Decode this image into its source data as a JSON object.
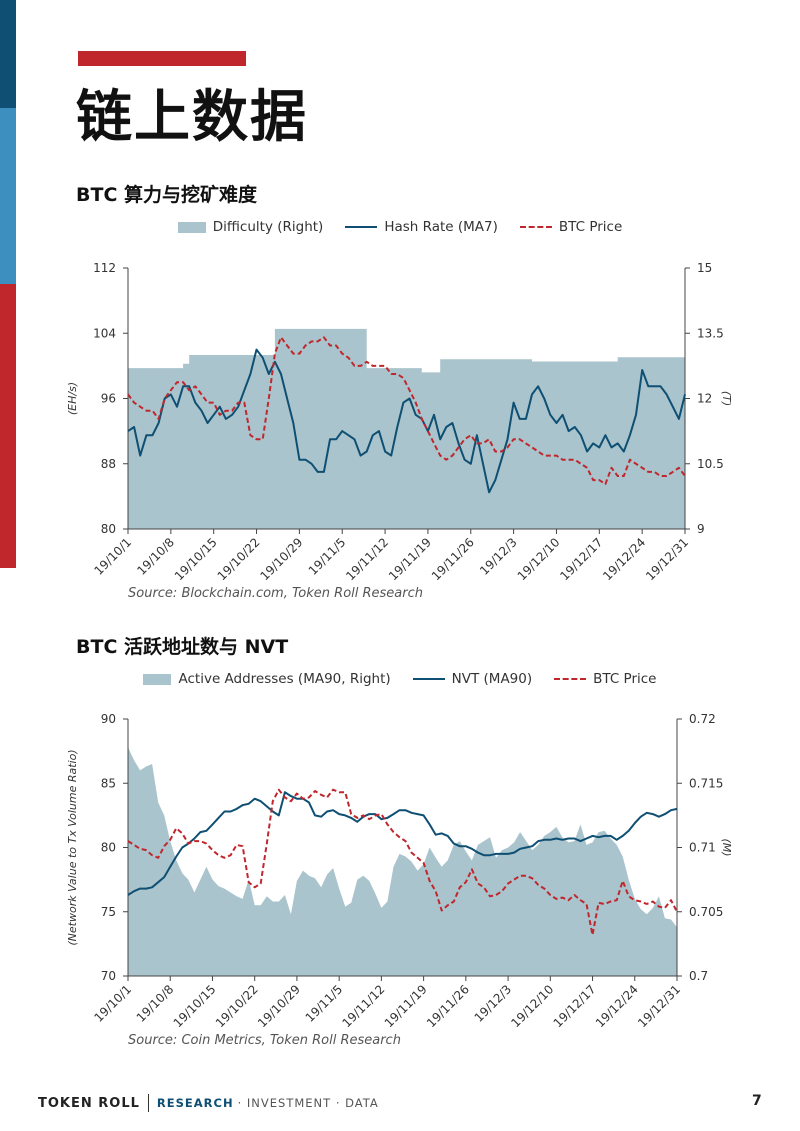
{
  "page": {
    "heading": "链上数据",
    "page_number": "7",
    "footer": {
      "brand": "TOKEN ROLL",
      "research": "RESEARCH",
      "rest": "· INVESTMENT · DATA"
    },
    "colors": {
      "area": "#a9c4cc",
      "line": "#0e4f73",
      "dash": "#c0272d",
      "accent_red": "#c0272d",
      "accent_blue": "#3d8fbf",
      "accent_navy": "#0e4f73"
    }
  },
  "chart_data": [
    {
      "type": "line",
      "title": "BTC 算力与挖矿难度",
      "source": "Source: Blockchain.com, Token Roll Research",
      "legend": [
        "Difficulty (Right)",
        "Hash Rate (MA7)",
        "BTC Price"
      ],
      "ylabel_left": "(EH/s)",
      "ylabel_right": "(T)",
      "ylim_left": [
        80,
        112
      ],
      "ylim_right": [
        9,
        15
      ],
      "yticks_left": [
        "80",
        "88",
        "96",
        "104",
        "112"
      ],
      "yticks_right": [
        "9",
        "10.5",
        "12",
        "13.5",
        "15"
      ],
      "xticks": [
        "19/10/1",
        "19/10/8",
        "19/10/15",
        "19/10/22",
        "19/10/29",
        "19/11/5",
        "19/11/12",
        "19/11/19",
        "19/11/26",
        "19/12/3",
        "19/12/10",
        "19/12/17",
        "19/12/24",
        "19/12/31"
      ],
      "n_days": 92,
      "series": [
        {
          "name": "Difficulty (Right)",
          "kind": "area",
          "axis": "right",
          "steps": [
            [
              0,
              12.7
            ],
            [
              9,
              12.8
            ],
            [
              10,
              13.0
            ],
            [
              24,
              13.6
            ],
            [
              39,
              12.7
            ],
            [
              48,
              12.6
            ],
            [
              51,
              12.9
            ],
            [
              66,
              12.85
            ],
            [
              80,
              12.95
            ],
            [
              91,
              12.95
            ]
          ]
        },
        {
          "name": "Hash Rate (MA7)",
          "kind": "line",
          "axis": "left",
          "values": [
            92,
            92.5,
            89,
            91.5,
            91.5,
            93,
            96,
            96.5,
            95,
            97.5,
            97.5,
            95.5,
            94.5,
            93,
            94,
            95,
            93.5,
            94,
            95,
            97,
            99,
            102,
            101,
            99,
            100.5,
            99,
            96,
            93,
            88.5,
            88.5,
            88,
            87,
            87,
            91,
            91,
            92,
            91.5,
            91,
            89,
            89.5,
            91.5,
            92,
            89.5,
            89,
            92.5,
            95.5,
            96,
            94,
            93.5,
            92,
            94,
            91,
            92.5,
            93,
            90.5,
            88.5,
            88,
            91.5,
            88,
            84.5,
            86,
            88.5,
            91,
            95.5,
            93.5,
            93.5,
            96.5,
            97.5,
            96,
            94,
            93,
            94,
            92,
            92.5,
            91.5,
            89.5,
            90.5,
            90,
            91.5,
            90,
            90.5,
            89.5,
            91.5,
            94,
            99.5,
            97.5,
            97.5,
            97.5,
            96.5,
            95,
            93.5,
            96.5
          ]
        },
        {
          "name": "BTC Price",
          "kind": "dashed",
          "axis": "left",
          "values": [
            96.5,
            95.5,
            95,
            94.5,
            94.5,
            93.5,
            96,
            97,
            98,
            98,
            97,
            97.5,
            96.5,
            95.5,
            95.5,
            94,
            94.5,
            94.5,
            95.5,
            95.5,
            91.5,
            91,
            91,
            96,
            101.5,
            103.5,
            102.5,
            101.5,
            101.5,
            102.5,
            103,
            103,
            103.5,
            102.5,
            102.5,
            101.5,
            101,
            100,
            100,
            100.5,
            100,
            100,
            100,
            99,
            99,
            98.5,
            97,
            95.5,
            93.5,
            92,
            90.5,
            89,
            88.5,
            89,
            90,
            91,
            91.5,
            90.5,
            90.5,
            91,
            89.5,
            89.5,
            90,
            91,
            91,
            90.5,
            90,
            89.5,
            89,
            89,
            89,
            88.5,
            88.5,
            88.5,
            88,
            87.5,
            86,
            86,
            85.5,
            87.5,
            86.5,
            86.5,
            88.5,
            88,
            87.5,
            87,
            87,
            86.5,
            86.5,
            87,
            87.5,
            86.5
          ]
        }
      ]
    },
    {
      "type": "line",
      "title": "BTC 活跃地址数与 NVT",
      "source": "Source: Coin Metrics, Token Roll Research",
      "legend": [
        "Active Addresses (MA90, Right)",
        "NVT (MA90)",
        "BTC Price"
      ],
      "ylabel_left": "(Network Value to Tx Volume Ratio)",
      "ylabel_right": "(M)",
      "ylim_left": [
        70,
        90
      ],
      "ylim_right": [
        0.7,
        0.72
      ],
      "yticks_left": [
        "70",
        "75",
        "80",
        "85",
        "90"
      ],
      "yticks_right": [
        "0.7",
        "0.705",
        "0.71",
        "0.715",
        "0.72"
      ],
      "xticks": [
        "19/10/1",
        "19/10/8",
        "19/10/15",
        "19/10/22",
        "19/10/29",
        "19/11/5",
        "19/11/12",
        "19/11/19",
        "19/11/26",
        "19/12/3",
        "19/12/10",
        "19/12/17",
        "19/12/24",
        "19/12/31"
      ],
      "n_days": 92,
      "series": [
        {
          "name": "Active Addresses (MA90, Right)",
          "kind": "area",
          "axis": "right",
          "values": [
            0.7178,
            0.7168,
            0.716,
            0.7163,
            0.7165,
            0.7135,
            0.7125,
            0.7105,
            0.709,
            0.708,
            0.7075,
            0.7065,
            0.7075,
            0.7085,
            0.7075,
            0.707,
            0.7068,
            0.7065,
            0.7062,
            0.706,
            0.7075,
            0.7055,
            0.7055,
            0.7062,
            0.7058,
            0.7058,
            0.7063,
            0.7048,
            0.7074,
            0.7082,
            0.7078,
            0.7076,
            0.7069,
            0.7079,
            0.7084,
            0.7068,
            0.7054,
            0.7057,
            0.7075,
            0.7078,
            0.7074,
            0.7064,
            0.7053,
            0.7058,
            0.7085,
            0.7095,
            0.7093,
            0.7089,
            0.7082,
            0.7087,
            0.71,
            0.7092,
            0.7085,
            0.709,
            0.7102,
            0.7105,
            0.7097,
            0.709,
            0.7102,
            0.7105,
            0.7108,
            0.7092,
            0.7098,
            0.71,
            0.7104,
            0.7112,
            0.7105,
            0.7098,
            0.7102,
            0.7109,
            0.7112,
            0.7116,
            0.7108,
            0.7104,
            0.7105,
            0.7118,
            0.7102,
            0.7104,
            0.7112,
            0.7113,
            0.7107,
            0.7102,
            0.7093,
            0.7075,
            0.706,
            0.7052,
            0.7048,
            0.7053,
            0.7062,
            0.7045,
            0.7044,
            0.7038
          ]
        },
        {
          "name": "NVT (MA90)",
          "kind": "line",
          "axis": "left",
          "values": [
            76.3,
            76.6,
            76.8,
            76.8,
            76.9,
            77.3,
            77.7,
            78.5,
            79.3,
            80,
            80.3,
            80.7,
            81.2,
            81.3,
            81.8,
            82.3,
            82.8,
            82.8,
            83,
            83.3,
            83.4,
            83.8,
            83.6,
            83.2,
            82.8,
            82.5,
            84.3,
            84,
            83.8,
            83.8,
            83.5,
            82.5,
            82.4,
            82.8,
            82.9,
            82.6,
            82.5,
            82.3,
            82,
            82.4,
            82.6,
            82.6,
            82.2,
            82.3,
            82.6,
            82.9,
            82.9,
            82.7,
            82.6,
            82.5,
            81.8,
            81,
            81.1,
            80.9,
            80.3,
            80.1,
            80.1,
            79.9,
            79.6,
            79.4,
            79.4,
            79.5,
            79.5,
            79.5,
            79.6,
            79.9,
            80,
            80.1,
            80.5,
            80.6,
            80.6,
            80.7,
            80.6,
            80.7,
            80.7,
            80.5,
            80.7,
            80.9,
            80.8,
            80.9,
            80.9,
            80.6,
            80.9,
            81.3,
            81.9,
            82.4,
            82.7,
            82.6,
            82.4,
            82.6,
            82.9,
            83
          ]
        },
        {
          "name": "BTC Price",
          "kind": "dashed",
          "axis": "left",
          "values": [
            80.5,
            80.2,
            79.9,
            79.8,
            79.4,
            79.2,
            80.1,
            80.6,
            81.5,
            81.1,
            80.3,
            80.5,
            80.5,
            80.3,
            79.8,
            79.4,
            79.2,
            79.4,
            80.2,
            80.1,
            77.3,
            76.9,
            77.2,
            80.3,
            83.6,
            84.5,
            83.9,
            83.6,
            84.2,
            83.8,
            83.9,
            84.4,
            84.1,
            83.9,
            84.5,
            84.3,
            84.3,
            82.6,
            82.3,
            82.5,
            82.2,
            82.5,
            82.6,
            81.8,
            81.2,
            80.8,
            80.5,
            79.6,
            79.2,
            78.8,
            77.4,
            76.6,
            75.1,
            75.5,
            75.8,
            76.9,
            77.3,
            78.3,
            77.2,
            76.9,
            76.2,
            76.3,
            76.6,
            77.2,
            77.5,
            77.8,
            77.8,
            77.6,
            77.1,
            76.8,
            76.3,
            76,
            76.1,
            75.9,
            76.3,
            75.9,
            75.6,
            73.2,
            75.7,
            75.6,
            75.8,
            75.9,
            77.4,
            76.2,
            75.9,
            75.8,
            75.6,
            75.8,
            75.4,
            75.3,
            75.9,
            75
          ]
        }
      ]
    }
  ]
}
